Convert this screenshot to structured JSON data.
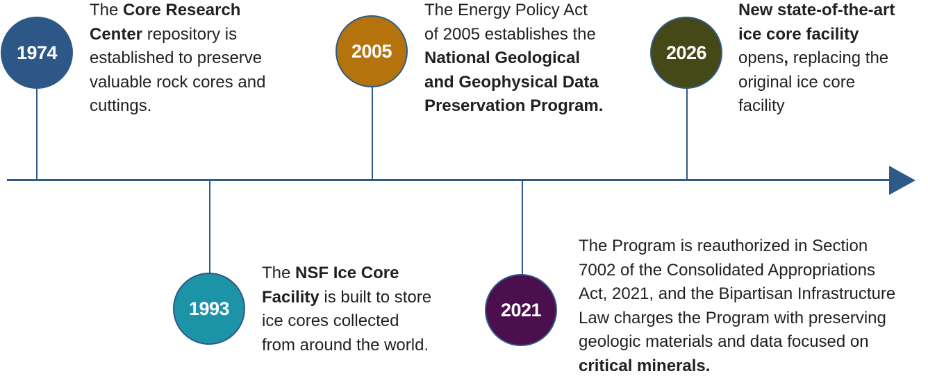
{
  "timeline": {
    "events": [
      {
        "year": "1974",
        "color": "#2c5786",
        "text": [
          [
            "The ",
            "Core Research",
            ""
          ],
          [
            "",
            "Center",
            " repository is"
          ],
          [
            "established to preserve",
            "",
            ""
          ],
          [
            "valuable rock cores and",
            "",
            ""
          ],
          [
            "cuttings.",
            "",
            ""
          ]
        ]
      },
      {
        "year": "1993",
        "color": "#1d93a8",
        "text": [
          [
            "The ",
            "NSF Ice Core",
            ""
          ],
          [
            "",
            "Facility",
            " is built to store"
          ],
          [
            "ice cores collected",
            "",
            ""
          ],
          [
            "from around the world.",
            "",
            ""
          ]
        ]
      },
      {
        "year": "2005",
        "color": "#b5730e",
        "text": [
          [
            "The Energy Policy Act",
            "",
            ""
          ],
          [
            "of 2005 establishes the",
            "",
            ""
          ],
          [
            "",
            "National Geological",
            ""
          ],
          [
            "",
            "and Geophysical Data",
            ""
          ],
          [
            "",
            "Preservation Program.",
            ""
          ]
        ]
      },
      {
        "year": "2021",
        "color": "#4b0f4e",
        "text": [
          [
            "The Program is reauthorized in Section",
            "",
            ""
          ],
          [
            "7002 of the Consolidated Appropriations",
            "",
            ""
          ],
          [
            "Act, 2021, and the Bipartisan Infrastructure",
            "",
            ""
          ],
          [
            "Law charges the Program with preserving",
            "",
            ""
          ],
          [
            "geologic materials and data focused on",
            "",
            ""
          ],
          [
            "",
            "critical minerals.",
            ""
          ]
        ]
      },
      {
        "year": "2026",
        "color": "#454817",
        "text": [
          [
            "",
            "New state-of-the-art",
            ""
          ],
          [
            "",
            "ice core facility",
            ""
          ],
          [
            "opens",
            ",",
            " replacing the"
          ],
          [
            "original ice core",
            "",
            ""
          ],
          [
            "facility",
            "",
            ""
          ]
        ]
      }
    ]
  }
}
